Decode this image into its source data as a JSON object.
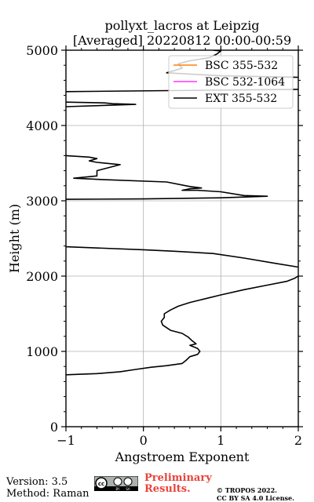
{
  "chart_data": {
    "type": "line",
    "title_line1": "pollyxt_lacros at Leipzig",
    "title_line2": "[Averaged] 20220812 00:00-00:59",
    "xlabel": "Angstroem Exponent",
    "ylabel": "Height (m)",
    "xlim": [
      -1,
      2
    ],
    "ylim": [
      0,
      5000
    ],
    "xticks": [
      -1,
      0,
      1,
      2
    ],
    "yticks": [
      0,
      1000,
      2000,
      3000,
      4000,
      5000
    ],
    "grid": true,
    "legend_position": "top-right",
    "series": [
      {
        "name": "BSC 355-532",
        "color": "#ff7f0e",
        "segments": []
      },
      {
        "name": "BSC 532-1064",
        "color": "#ff33ff",
        "segments": []
      },
      {
        "name": "EXT 355-532",
        "color": "#000000",
        "segments": [
          [
            [
              -1.0,
              690
            ],
            [
              -0.6,
              705
            ],
            [
              -0.3,
              730
            ],
            [
              -0.1,
              760
            ],
            [
              0.1,
              790
            ],
            [
              0.3,
              810
            ],
            [
              0.5,
              840
            ],
            [
              0.55,
              880
            ],
            [
              0.6,
              930
            ],
            [
              0.7,
              960
            ],
            [
              0.73,
              1000
            ],
            [
              0.7,
              1040
            ],
            [
              0.6,
              1080
            ],
            [
              0.68,
              1100
            ],
            [
              0.62,
              1150
            ],
            [
              0.58,
              1190
            ],
            [
              0.5,
              1240
            ],
            [
              0.35,
              1280
            ],
            [
              0.25,
              1350
            ],
            [
              0.23,
              1400
            ],
            [
              0.27,
              1450
            ],
            [
              0.27,
              1500
            ],
            [
              0.35,
              1550
            ],
            [
              0.45,
              1600
            ],
            [
              0.6,
              1650
            ],
            [
              0.8,
              1700
            ],
            [
              1.0,
              1750
            ],
            [
              1.3,
              1820
            ],
            [
              1.6,
              1880
            ],
            [
              1.85,
              1930
            ],
            [
              1.95,
              1970
            ],
            [
              2.0,
              2000
            ]
          ],
          [
            [
              2.0,
              2120
            ],
            [
              1.7,
              2170
            ],
            [
              1.3,
              2240
            ],
            [
              0.9,
              2300
            ],
            [
              0.4,
              2330
            ],
            [
              0.0,
              2350
            ],
            [
              -1.0,
              2390
            ]
          ],
          [
            [
              -1.0,
              3020
            ],
            [
              0.0,
              3025
            ],
            [
              1.0,
              3040
            ],
            [
              1.6,
              3060
            ],
            [
              1.3,
              3070
            ],
            [
              1.0,
              3120
            ],
            [
              0.7,
              3140
            ],
            [
              0.5,
              3140
            ],
            [
              0.6,
              3160
            ],
            [
              0.75,
              3170
            ],
            [
              0.6,
              3190
            ],
            [
              0.3,
              3250
            ],
            [
              -0.5,
              3280
            ],
            [
              -0.9,
              3300
            ],
            [
              -0.6,
              3330
            ],
            [
              -0.6,
              3400
            ],
            [
              -0.3,
              3480
            ],
            [
              -0.6,
              3510
            ],
            [
              -0.7,
              3530
            ],
            [
              -0.6,
              3560
            ],
            [
              -0.7,
              3580
            ],
            [
              -1.0,
              3600
            ]
          ],
          [
            [
              -1.0,
              4250
            ],
            [
              -0.1,
              4280
            ],
            [
              -0.4,
              4290
            ],
            [
              -0.5,
              4300
            ],
            [
              -1.0,
              4310
            ]
          ],
          [
            [
              -1.0,
              4450
            ],
            [
              2.0,
              4480
            ]
          ],
          [
            [
              2.0,
              4640
            ],
            [
              1.0,
              4660
            ],
            [
              0.3,
              4700
            ],
            [
              0.5,
              4760
            ],
            [
              0.45,
              4820
            ],
            [
              0.6,
              4860
            ],
            [
              0.85,
              4900
            ],
            [
              0.95,
              4950
            ],
            [
              1.0,
              4990
            ],
            [
              0.9,
              5000
            ]
          ]
        ]
      }
    ]
  },
  "footer": {
    "version": "Version: 3.5",
    "method": "Method: Raman",
    "preliminary_line1": "Preliminary",
    "preliminary_line2": "Results.",
    "copyright_line1": "© TROPOS 2022.",
    "copyright_line2": "CC BY SA 4.0 License.",
    "license_badge_text": "cc BY SA"
  }
}
